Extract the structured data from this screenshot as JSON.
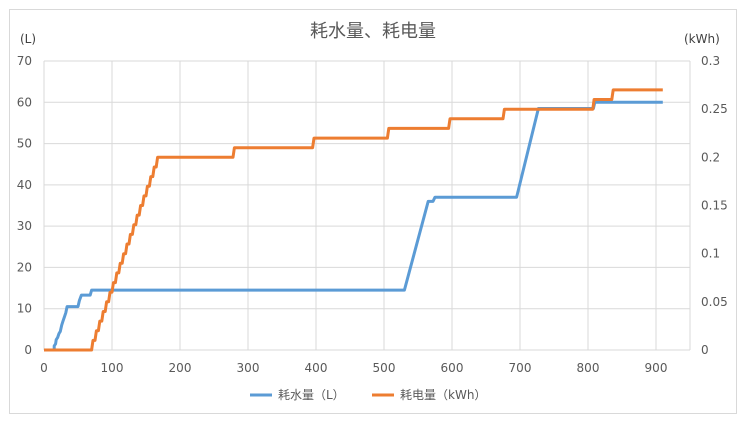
{
  "chart_data": {
    "type": "line",
    "title": "耗水量、耗电量",
    "y_unit_left": "(L)",
    "y_unit_right": "(kWh)",
    "xlim": [
      0,
      950
    ],
    "ylim_left": [
      0,
      70
    ],
    "ylim_right": [
      0,
      0.3
    ],
    "x_ticks": [
      "0",
      "100",
      "200",
      "300",
      "400",
      "500",
      "600",
      "700",
      "800",
      "900"
    ],
    "y_ticks_left": [
      "0",
      "10",
      "20",
      "30",
      "40",
      "50",
      "60",
      "70"
    ],
    "y_ticks_right": [
      "0",
      "0.05",
      "0.1",
      "0.15",
      "0.2",
      "0.25",
      "0.3"
    ],
    "grid": true,
    "legend_position": "bottom",
    "series": [
      {
        "name": "耗水量（L）",
        "axis": "left",
        "color": "#5B9BD5",
        "points": [
          [
            15,
            0
          ],
          [
            15,
            1
          ],
          [
            17,
            1.5
          ],
          [
            18,
            2.5
          ],
          [
            20,
            3
          ],
          [
            22,
            4
          ],
          [
            24,
            4.5
          ],
          [
            26,
            6
          ],
          [
            28,
            7
          ],
          [
            30,
            8
          ],
          [
            32,
            9
          ],
          [
            34,
            10.5
          ],
          [
            50,
            10.5
          ],
          [
            52,
            12
          ],
          [
            55,
            13.3
          ],
          [
            68,
            13.3
          ],
          [
            70,
            14.5
          ],
          [
            530,
            14.5
          ],
          [
            565,
            36
          ],
          [
            572,
            36
          ],
          [
            575,
            37
          ],
          [
            695,
            37
          ],
          [
            727,
            58.5
          ],
          [
            808,
            58.5
          ],
          [
            810,
            60
          ],
          [
            910,
            60
          ]
        ]
      },
      {
        "name": "耗电量（kWh）",
        "axis": "right",
        "color": "#ED7D31",
        "points": [
          [
            0,
            0
          ],
          [
            70,
            0
          ],
          [
            72,
            0.01
          ],
          [
            75,
            0.01
          ],
          [
            77,
            0.02
          ],
          [
            80,
            0.02
          ],
          [
            82,
            0.03
          ],
          [
            85,
            0.03
          ],
          [
            87,
            0.04
          ],
          [
            90,
            0.04
          ],
          [
            92,
            0.05
          ],
          [
            95,
            0.05
          ],
          [
            97,
            0.06
          ],
          [
            100,
            0.06
          ],
          [
            102,
            0.07
          ],
          [
            105,
            0.07
          ],
          [
            107,
            0.08
          ],
          [
            110,
            0.08
          ],
          [
            112,
            0.09
          ],
          [
            115,
            0.09
          ],
          [
            117,
            0.1
          ],
          [
            120,
            0.1
          ],
          [
            122,
            0.11
          ],
          [
            125,
            0.11
          ],
          [
            127,
            0.12
          ],
          [
            130,
            0.12
          ],
          [
            132,
            0.13
          ],
          [
            135,
            0.13
          ],
          [
            137,
            0.14
          ],
          [
            140,
            0.14
          ],
          [
            142,
            0.15
          ],
          [
            145,
            0.15
          ],
          [
            147,
            0.16
          ],
          [
            150,
            0.16
          ],
          [
            152,
            0.17
          ],
          [
            155,
            0.17
          ],
          [
            157,
            0.18
          ],
          [
            160,
            0.18
          ],
          [
            162,
            0.19
          ],
          [
            165,
            0.19
          ],
          [
            167,
            0.2
          ],
          [
            278,
            0.2
          ],
          [
            280,
            0.21
          ],
          [
            395,
            0.21
          ],
          [
            397,
            0.22
          ],
          [
            505,
            0.22
          ],
          [
            507,
            0.23
          ],
          [
            595,
            0.23
          ],
          [
            597,
            0.24
          ],
          [
            675,
            0.24
          ],
          [
            677,
            0.25
          ],
          [
            807,
            0.25
          ],
          [
            809,
            0.26
          ],
          [
            835,
            0.26
          ],
          [
            837,
            0.27
          ],
          [
            910,
            0.27
          ]
        ]
      }
    ]
  }
}
